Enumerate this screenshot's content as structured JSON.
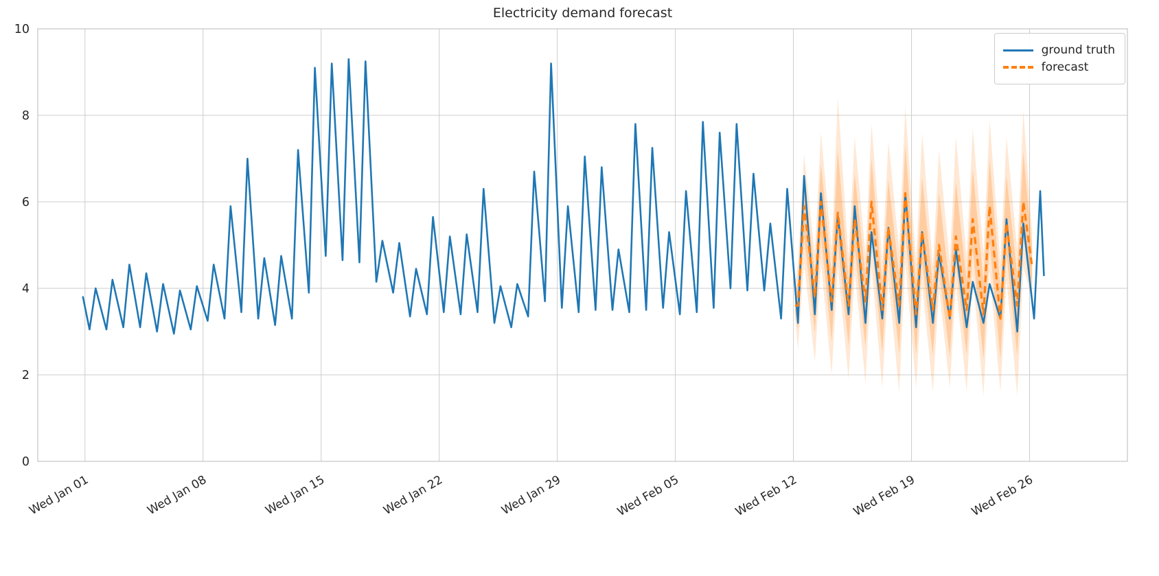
{
  "chart_data": {
    "type": "line",
    "title": "Electricity demand forecast",
    "xlabel": "",
    "ylabel": "",
    "ylim": [
      0,
      10
    ],
    "yticks": [
      0,
      2,
      4,
      6,
      8,
      10
    ],
    "xtick_labels": [
      "Wed Jan 01",
      "Wed Jan 08",
      "Wed Jan 15",
      "Wed Jan 22",
      "Wed Jan 29",
      "Wed Feb 05",
      "Wed Feb 12",
      "Wed Feb 19",
      "Wed Feb 26"
    ],
    "xtick_days": [
      0,
      7,
      14,
      21,
      28,
      35,
      42,
      49,
      56
    ],
    "xlim_days": [
      -2.8,
      61.8
    ],
    "grid": true,
    "legend_position": "upper right",
    "encoding_note": "values sampled as daily low (early morning) and daily high (afternoon peak); day 0 = Wed Jan 01",
    "series": [
      {
        "name": "ground truth",
        "color": "#1f77b4",
        "line_style": "solid",
        "start_day": 0,
        "head": [
          -0.12,
          3.8
        ],
        "tail": [
          56.85,
          4.3
        ],
        "daily_low": [
          3.05,
          3.05,
          3.1,
          3.1,
          3.0,
          2.95,
          3.05,
          3.25,
          3.3,
          3.45,
          3.3,
          3.15,
          3.3,
          3.9,
          4.75,
          4.65,
          4.6,
          4.15,
          3.9,
          3.35,
          3.4,
          3.45,
          3.4,
          3.45,
          3.2,
          3.1,
          3.35,
          3.7,
          3.55,
          3.45,
          3.5,
          3.5,
          3.45,
          3.5,
          3.55,
          3.4,
          3.45,
          3.55,
          4.0,
          3.95,
          3.95,
          3.3,
          3.2,
          3.4,
          3.5,
          3.4,
          3.2,
          3.3,
          3.2,
          3.1,
          3.2,
          3.3,
          3.1,
          3.2,
          3.3,
          3.0,
          3.3
        ],
        "daily_high": [
          4.0,
          4.2,
          4.55,
          4.35,
          4.1,
          3.95,
          4.05,
          4.55,
          5.9,
          7.0,
          4.7,
          4.75,
          7.2,
          9.1,
          9.2,
          9.3,
          9.25,
          5.1,
          5.05,
          4.45,
          5.65,
          5.2,
          5.25,
          6.3,
          4.05,
          4.1,
          6.7,
          9.2,
          5.9,
          7.05,
          6.8,
          4.9,
          7.8,
          7.25,
          5.3,
          6.25,
          7.85,
          7.6,
          7.8,
          6.65,
          5.5,
          6.3,
          6.6,
          6.2,
          5.7,
          5.9,
          5.3,
          5.4,
          6.2,
          5.3,
          4.8,
          4.9,
          4.15,
          4.1,
          5.6,
          5.5,
          6.25
        ]
      },
      {
        "name": "forecast",
        "color": "#ff7f0e",
        "line_style": "dashed",
        "start_day": 42,
        "head": [
          42.1,
          3.6
        ],
        "tail": [
          56.15,
          4.5
        ],
        "daily_low": [
          3.6,
          3.8,
          3.7,
          3.6,
          3.7,
          3.5,
          3.6,
          3.4,
          3.5,
          3.3,
          3.5,
          3.4,
          3.3,
          3.6
        ],
        "daily_high": [
          5.9,
          6.0,
          5.75,
          5.6,
          6.0,
          5.4,
          6.2,
          5.3,
          5.0,
          5.2,
          5.6,
          5.9,
          5.5,
          6.0
        ],
        "band": {
          "color": "#ff7f0e",
          "outer_opacity": 0.18,
          "inner_opacity": 0.26,
          "head_upper": 4.1,
          "head_lower": 3.3,
          "tail_upper": 5.3,
          "tail_lower": 3.7,
          "upper_at_low": [
            4.6,
            4.8,
            4.9,
            4.7,
            4.8,
            4.6,
            4.9,
            4.6,
            4.5,
            4.6,
            4.7,
            4.8,
            4.6,
            4.9
          ],
          "upper_at_high": [
            7.1,
            7.6,
            8.4,
            7.5,
            7.8,
            7.4,
            8.2,
            7.6,
            7.2,
            7.5,
            7.7,
            7.9,
            7.5,
            8.1
          ],
          "lower_at_low": [
            2.6,
            2.3,
            2.0,
            1.9,
            1.8,
            1.7,
            1.6,
            1.7,
            1.6,
            1.7,
            1.6,
            1.5,
            1.6,
            1.5
          ],
          "lower_at_high": [
            4.6,
            4.6,
            4.5,
            4.4,
            4.5,
            4.2,
            4.6,
            4.1,
            4.0,
            4.1,
            4.3,
            4.4,
            4.2,
            4.5
          ]
        }
      }
    ]
  }
}
